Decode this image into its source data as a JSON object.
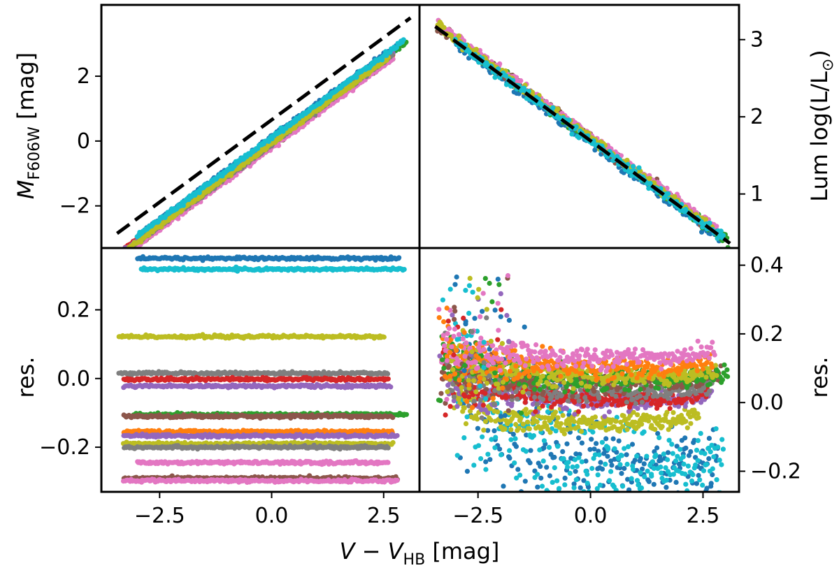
{
  "figure": {
    "xlabel": {
      "main": "V − V",
      "sub": "HB",
      "unit": " [mag]"
    }
  },
  "series_colors": [
    "#1f77b4",
    "#ff7f0e",
    "#2ca02c",
    "#d62728",
    "#9467bd",
    "#8c564b",
    "#e377c2",
    "#7f7f7f",
    "#bcbd22",
    "#17becf"
  ],
  "chart_data": [
    {
      "id": "top-left",
      "type": "scatter",
      "title": "",
      "xlabel": "",
      "ylabel": {
        "main": "M",
        "sub": "F606W",
        "unit": " [mag]"
      },
      "xlim": [
        -3.8,
        3.3
      ],
      "ylim": [
        -3.3,
        4.2
      ],
      "yticks": [
        -2,
        0,
        2
      ],
      "ytick_labels": [
        "−2",
        "0",
        "2"
      ],
      "xticks": [
        -2.5,
        0.0,
        2.5
      ],
      "fit_line": {
        "style": "dashed",
        "color": "#000000",
        "x": [
          -3.45,
          3.1
        ],
        "y": [
          -2.85,
          3.8
        ]
      },
      "series": [
        {
          "name": "s1",
          "x_range": [
            -3.0,
            2.85
          ],
          "slope": 1.015,
          "intercept": 0.12,
          "color": "#1f77b4"
        },
        {
          "name": "s2",
          "x_range": [
            -3.4,
            2.7
          ],
          "slope": 1.015,
          "intercept": -0.05,
          "color": "#ff7f0e"
        },
        {
          "name": "s3",
          "x_range": [
            -3.4,
            3.0
          ],
          "slope": 1.015,
          "intercept": 0.0,
          "color": "#2ca02c"
        },
        {
          "name": "s4",
          "x_range": [
            -3.4,
            2.7
          ],
          "slope": 1.015,
          "intercept": 0.0,
          "color": "#d62728"
        },
        {
          "name": "s5",
          "x_range": [
            -3.4,
            2.7
          ],
          "slope": 1.015,
          "intercept": -0.02,
          "color": "#9467bd"
        },
        {
          "name": "s6",
          "x_range": [
            -3.4,
            2.7
          ],
          "slope": 1.015,
          "intercept": -0.15,
          "color": "#8c564b"
        },
        {
          "name": "s7",
          "x_range": [
            -3.4,
            2.7
          ],
          "slope": 1.015,
          "intercept": -0.2,
          "color": "#e377c2"
        },
        {
          "name": "s8",
          "x_range": [
            -3.4,
            2.7
          ],
          "slope": 1.015,
          "intercept": -0.1,
          "color": "#7f7f7f"
        },
        {
          "name": "s9",
          "x_range": [
            -3.4,
            2.6
          ],
          "slope": 1.015,
          "intercept": -0.08,
          "color": "#bcbd22"
        },
        {
          "name": "s10",
          "x_range": [
            -3.0,
            2.95
          ],
          "slope": 1.015,
          "intercept": 0.1,
          "color": "#17becf"
        }
      ]
    },
    {
      "id": "top-right",
      "type": "scatter",
      "title": "",
      "xlabel": "",
      "ylabel": {
        "main": "Lum log(L/L",
        "sun": "⊙",
        "unit": ")"
      },
      "ylabel_side": "right",
      "xlim": [
        -3.8,
        3.3
      ],
      "ylim": [
        0.3,
        3.45
      ],
      "yticks": [
        1,
        2,
        3
      ],
      "ytick_labels": [
        "1",
        "2",
        "3"
      ],
      "xticks": [
        -2.5,
        0.0,
        2.5
      ],
      "fit_line": {
        "style": "dashed",
        "color": "#000000",
        "x": [
          -3.45,
          3.1
        ],
        "y": [
          3.17,
          0.36
        ]
      },
      "series": [
        {
          "name": "s1",
          "x_range": [
            -3.0,
            2.85
          ],
          "slope": -0.43,
          "intercept": 1.67,
          "color": "#1f77b4"
        },
        {
          "name": "s3",
          "x_range": [
            -3.4,
            3.05
          ],
          "slope": -0.43,
          "intercept": 1.71,
          "color": "#2ca02c"
        },
        {
          "name": "s6",
          "x_range": [
            -3.4,
            2.7
          ],
          "slope": -0.43,
          "intercept": 1.72,
          "color": "#8c564b"
        },
        {
          "name": "s7",
          "x_range": [
            -3.4,
            2.8
          ],
          "slope": -0.43,
          "intercept": 1.75,
          "color": "#e377c2"
        },
        {
          "name": "s9",
          "x_range": [
            -3.4,
            2.7
          ],
          "slope": -0.43,
          "intercept": 1.72,
          "color": "#bcbd22"
        },
        {
          "name": "s10",
          "x_range": [
            -3.0,
            2.95
          ],
          "slope": -0.43,
          "intercept": 1.69,
          "color": "#17becf"
        }
      ]
    },
    {
      "id": "bottom-left",
      "type": "scatter",
      "title": "",
      "xlabel": "V − V_HB [mag]",
      "ylabel": {
        "main": "res."
      },
      "xlim": [
        -3.8,
        3.3
      ],
      "ylim": [
        -0.33,
        0.38
      ],
      "yticks": [
        -0.2,
        0.0,
        0.2
      ],
      "ytick_labels": [
        "−0.2",
        "0.0",
        "0.2"
      ],
      "xticks": [
        -2.5,
        0.0,
        2.5
      ],
      "xtick_labels": [
        "−2.5",
        "0.0",
        "2.5"
      ],
      "series": [
        {
          "name": "s1",
          "x_range": [
            -3.0,
            2.85
          ],
          "level": 0.35,
          "color": "#1f77b4"
        },
        {
          "name": "s10",
          "x_range": [
            -2.9,
            2.95
          ],
          "level": 0.318,
          "color": "#17becf"
        },
        {
          "name": "s9",
          "x_range": [
            -3.4,
            2.5
          ],
          "level": 0.122,
          "color": "#bcbd22"
        },
        {
          "name": "s8",
          "x_range": [
            -3.4,
            2.6
          ],
          "level": 0.015,
          "color": "#7f7f7f"
        },
        {
          "name": "s4",
          "x_range": [
            -3.3,
            2.6
          ],
          "level": -0.002,
          "color": "#d62728"
        },
        {
          "name": "s5",
          "x_range": [
            -3.3,
            2.65
          ],
          "level": -0.022,
          "color": "#9467bd"
        },
        {
          "name": "s3",
          "x_range": [
            -3.1,
            3.0
          ],
          "level": -0.105,
          "color": "#2ca02c"
        },
        {
          "name": "s6",
          "x_range": [
            -3.3,
            2.7
          ],
          "level": -0.11,
          "color": "#8c564b"
        },
        {
          "name": "s2",
          "x_range": [
            -3.3,
            2.7
          ],
          "level": -0.155,
          "color": "#ff7f0e"
        },
        {
          "name": "s5b",
          "x_range": [
            -3.3,
            2.8
          ],
          "level": -0.167,
          "color": "#9467bd"
        },
        {
          "name": "s9b",
          "x_range": [
            -3.3,
            2.7
          ],
          "level": -0.19,
          "color": "#bcbd22"
        },
        {
          "name": "s8b",
          "x_range": [
            -3.3,
            2.6
          ],
          "level": -0.2,
          "color": "#7f7f7f"
        },
        {
          "name": "s7",
          "x_range": [
            -3.0,
            2.6
          ],
          "level": -0.245,
          "color": "#e377c2"
        },
        {
          "name": "s6b",
          "x_range": [
            -3.3,
            2.8
          ],
          "level": -0.29,
          "color": "#8c564b"
        },
        {
          "name": "s7b",
          "x_range": [
            -3.3,
            2.8
          ],
          "level": -0.298,
          "color": "#e377c2"
        }
      ]
    },
    {
      "id": "bottom-right",
      "type": "scatter",
      "title": "",
      "xlabel": "V − V_HB [mag]",
      "ylabel": {
        "main": "res."
      },
      "ylabel_side": "right",
      "xlim": [
        -3.8,
        3.3
      ],
      "ylim": [
        -0.26,
        0.45
      ],
      "yticks": [
        -0.2,
        0.0,
        0.2,
        0.4
      ],
      "ytick_labels": [
        "−0.2",
        "0.0",
        "0.2",
        "0.4"
      ],
      "xticks": [
        -2.5,
        0.0,
        2.5
      ],
      "xtick_labels": [
        "−2.5",
        "0.0",
        "2.5"
      ],
      "series": [
        {
          "name": "s1",
          "x_range": [
            -3.0,
            2.85
          ],
          "start": 0.12,
          "level": -0.19,
          "color": "#1f77b4",
          "spread": 0.05
        },
        {
          "name": "s10",
          "x_range": [
            -3.0,
            2.95
          ],
          "start": 0.12,
          "level": -0.19,
          "color": "#17becf",
          "spread": 0.045
        },
        {
          "name": "s9b",
          "x_range": [
            -3.1,
            2.4
          ],
          "start": 0.0,
          "level": -0.06,
          "color": "#bcbd22",
          "spread": 0.01
        },
        {
          "name": "s5",
          "x_range": [
            -3.2,
            2.7
          ],
          "start": 0.08,
          "level": 0.0,
          "color": "#9467bd",
          "spread": 0.012
        },
        {
          "name": "s4",
          "x_range": [
            -3.3,
            2.6
          ],
          "start": 0.1,
          "level": 0.005,
          "color": "#d62728",
          "spread": 0.01
        },
        {
          "name": "s8",
          "x_range": [
            -3.3,
            2.7
          ],
          "start": 0.1,
          "level": 0.03,
          "color": "#7f7f7f",
          "spread": 0.012
        },
        {
          "name": "s6",
          "x_range": [
            -3.3,
            2.9
          ],
          "start": 0.12,
          "level": 0.06,
          "color": "#8c564b",
          "spread": 0.012
        },
        {
          "name": "s3",
          "x_range": [
            -3.3,
            3.05
          ],
          "start": 0.14,
          "level": 0.065,
          "color": "#2ca02c",
          "spread": 0.012
        },
        {
          "name": "s9",
          "x_range": [
            -3.2,
            2.8
          ],
          "start": 0.12,
          "level": 0.075,
          "color": "#bcbd22",
          "spread": 0.012
        },
        {
          "name": "s2",
          "x_range": [
            -3.3,
            2.7
          ],
          "start": 0.14,
          "level": 0.1,
          "color": "#ff7f0e",
          "spread": 0.012
        },
        {
          "name": "s7",
          "x_range": [
            -3.3,
            2.75
          ],
          "start": 0.16,
          "level": 0.13,
          "color": "#e377c2",
          "spread": 0.012
        }
      ]
    }
  ]
}
